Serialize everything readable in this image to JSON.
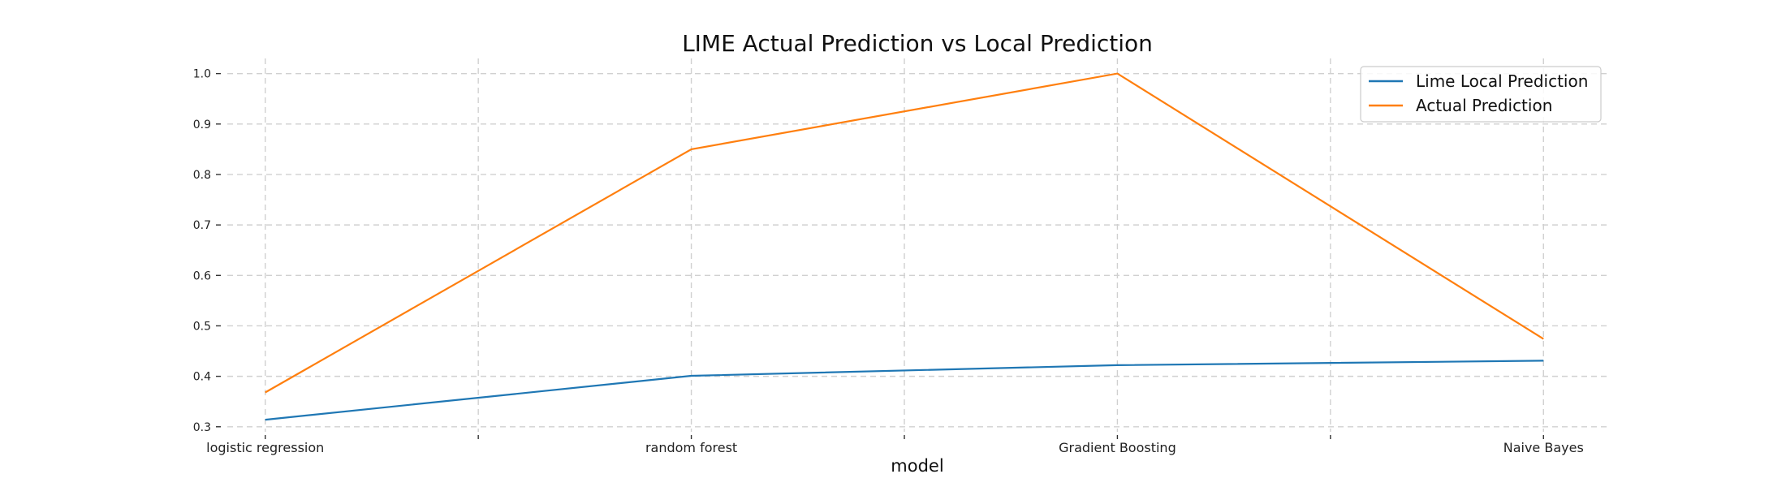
{
  "chart_data": {
    "type": "line",
    "title": "LIME Actual Prediction vs Local Prediction",
    "xlabel": "model",
    "ylabel": "",
    "categories": [
      "logistic regression",
      "random forest",
      "Gradient Boosting",
      "Naive Bayes"
    ],
    "x": [
      0,
      1,
      2,
      3
    ],
    "xlim": [
      -0.15,
      3.15
    ],
    "ylim": [
      0.29,
      1.03
    ],
    "yticks": [
      "0.3",
      "0.4",
      "0.5",
      "0.6",
      "0.7",
      "0.8",
      "0.9",
      "1.0"
    ],
    "grid": true,
    "legend_position": "top-right",
    "series": [
      {
        "name": "Lime Local Prediction",
        "color": "#1f77b4",
        "values": [
          0.314,
          0.401,
          0.422,
          0.431
        ]
      },
      {
        "name": "Actual Prediction",
        "color": "#ff7f0e",
        "values": [
          0.368,
          0.85,
          1.0,
          0.474
        ]
      }
    ]
  }
}
